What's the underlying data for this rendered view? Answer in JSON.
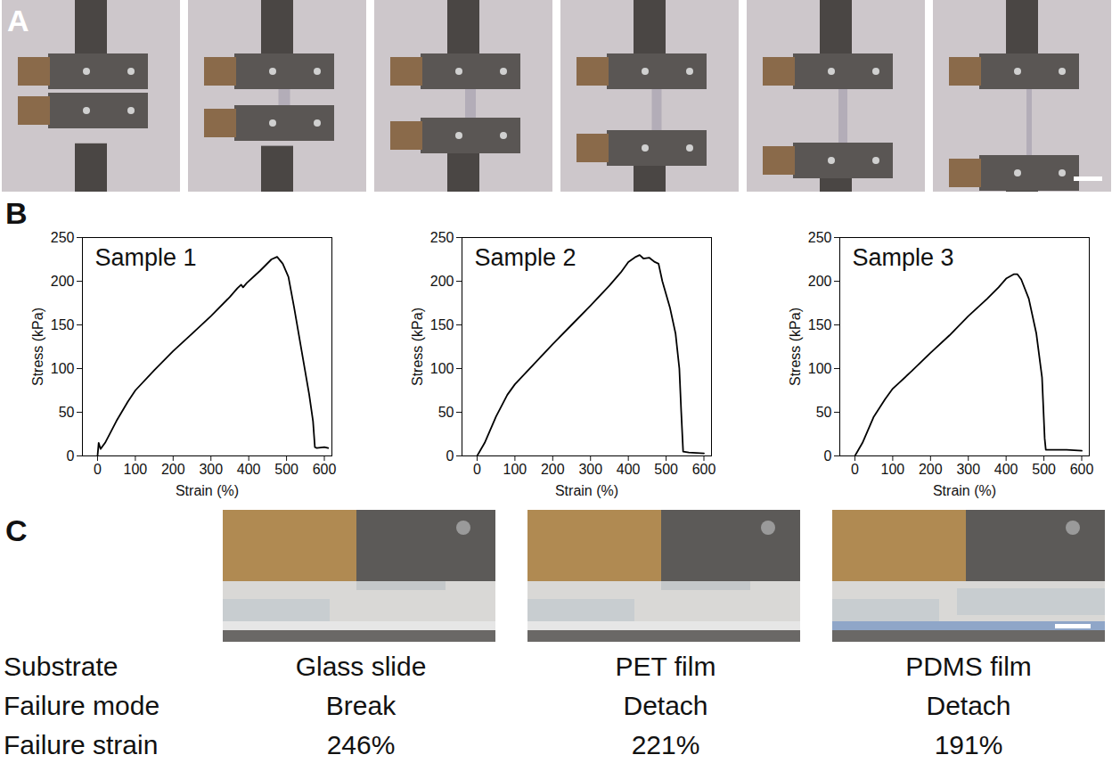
{
  "panel_labels": [
    "A",
    "B",
    "C"
  ],
  "chart_data": [
    {
      "type": "line",
      "title": "Sample 1",
      "x_label": "Strain (%)",
      "y_label": "Stress (kPa)",
      "color": "#000000",
      "xlim": [
        -40,
        620
      ],
      "xticks": [
        0,
        100,
        200,
        300,
        400,
        500,
        600
      ],
      "ylim": [
        0,
        250
      ],
      "yticks": [
        0,
        50,
        100,
        150,
        200,
        250
      ],
      "x": [
        0,
        3,
        8,
        20,
        50,
        80,
        100,
        150,
        200,
        250,
        300,
        350,
        370,
        380,
        385,
        395,
        430,
        460,
        475,
        490,
        505,
        520,
        540,
        560,
        570,
        575,
        580,
        600,
        610
      ],
      "values": [
        0,
        15,
        8,
        15,
        40,
        62,
        75,
        98,
        120,
        140,
        160,
        182,
        192,
        196,
        193,
        198,
        212,
        225,
        228,
        220,
        205,
        170,
        120,
        70,
        40,
        10,
        9,
        10,
        9
      ]
    },
    {
      "type": "line",
      "title": "Sample 2",
      "x_label": "Strain (%)",
      "y_label": "Stress (kPa)",
      "color": "#000000",
      "xlim": [
        -40,
        620
      ],
      "xticks": [
        0,
        100,
        200,
        300,
        400,
        500,
        600
      ],
      "ylim": [
        0,
        250
      ],
      "yticks": [
        0,
        50,
        100,
        150,
        200,
        250
      ],
      "x": [
        0,
        20,
        50,
        80,
        100,
        150,
        200,
        250,
        300,
        350,
        380,
        400,
        420,
        430,
        440,
        455,
        470,
        480,
        490,
        510,
        525,
        535,
        540,
        545,
        560,
        600
      ],
      "values": [
        0,
        15,
        45,
        70,
        82,
        105,
        128,
        150,
        172,
        195,
        210,
        222,
        228,
        230,
        226,
        227,
        222,
        220,
        200,
        170,
        140,
        100,
        50,
        5,
        4,
        3
      ]
    },
    {
      "type": "line",
      "title": "Sample 3",
      "x_label": "Strain (%)",
      "y_label": "Stress (kPa)",
      "color": "#000000",
      "xlim": [
        -40,
        620
      ],
      "xticks": [
        0,
        100,
        200,
        300,
        400,
        500,
        600
      ],
      "ylim": [
        0,
        250
      ],
      "yticks": [
        0,
        50,
        100,
        150,
        200,
        250
      ],
      "x": [
        0,
        20,
        50,
        80,
        100,
        150,
        200,
        250,
        300,
        350,
        380,
        400,
        420,
        430,
        440,
        460,
        480,
        495,
        502,
        505,
        560,
        600
      ],
      "values": [
        0,
        15,
        45,
        65,
        77,
        97,
        118,
        138,
        160,
        180,
        193,
        203,
        208,
        208,
        202,
        180,
        140,
        90,
        20,
        7,
        7,
        6
      ]
    }
  ],
  "table": {
    "rows": [
      [
        "Substrate",
        "Glass slide",
        "PET film",
        "PDMS film"
      ],
      [
        "Failure mode",
        "Break",
        "Detach",
        "Detach"
      ],
      [
        "Failure strain",
        "246%",
        "221%",
        "191%"
      ]
    ]
  }
}
